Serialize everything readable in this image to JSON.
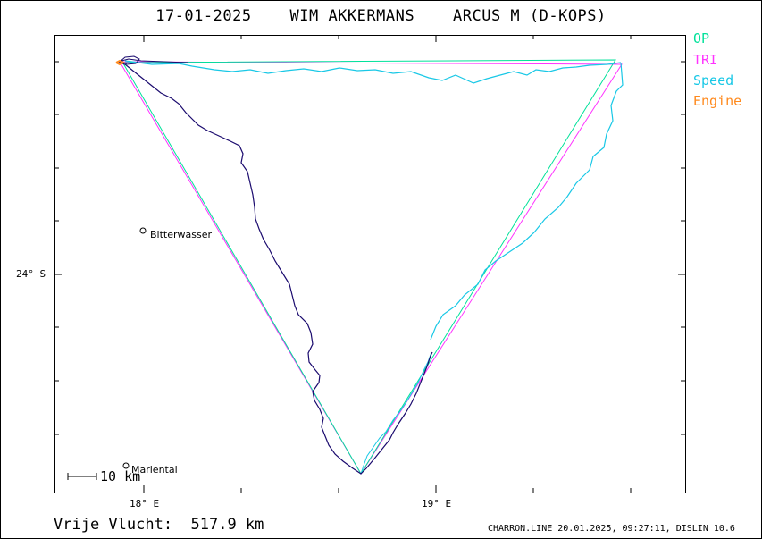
{
  "header": {
    "title": "17-01-2025    WIM AKKERMANS    ARCUS M (D-KOPS)"
  },
  "legend": [
    {
      "label": "OP",
      "color": "#00e19a"
    },
    {
      "label": "TRI",
      "color": "#ff33ff"
    },
    {
      "label": "Speed",
      "color": "#19c8e6"
    },
    {
      "label": "Engine",
      "color": "#ff8a1e"
    }
  ],
  "axes": {
    "lat_label": "24° S",
    "lon_labels": [
      "18° E",
      "19° E"
    ]
  },
  "places": [
    {
      "name": "Bitterwasser"
    },
    {
      "name": "Mariental"
    }
  ],
  "scale_bar": {
    "label": "10 km"
  },
  "footer": {
    "distance_text": "Vrije Vlucht:  517.9 km",
    "info_text": "CHARRON.LINE 20.01.2025, 09:27:11, DISLIN 10.6"
  },
  "colors": {
    "track": "#1a0a6e",
    "op": "#00e19a",
    "tri": "#ff33ff",
    "speed": "#19c8e6",
    "engine": "#ff8a1e"
  }
}
